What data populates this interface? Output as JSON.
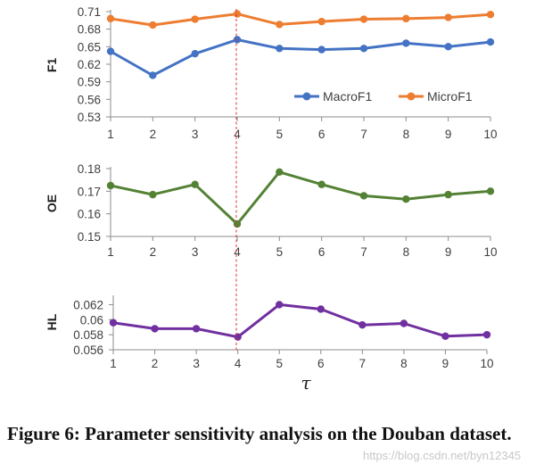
{
  "chart_data": [
    {
      "id": "f1",
      "type": "line",
      "ylabel": "F1",
      "xlabel": "",
      "categories": [
        "1",
        "2",
        "3",
        "4",
        "5",
        "6",
        "7",
        "8",
        "9",
        "10"
      ],
      "ylim": [
        0.53,
        0.71
      ],
      "yticks": [
        "0.71",
        "0.68",
        "0.65",
        "0.62",
        "0.59",
        "0.56",
        "0.53"
      ],
      "legend_position": "lower-right",
      "series": [
        {
          "name": "MacroF1",
          "color": "#4472c4",
          "values": [
            0.642,
            0.601,
            0.638,
            0.662,
            0.647,
            0.645,
            0.647,
            0.656,
            0.65,
            0.658
          ]
        },
        {
          "name": "MicroF1",
          "color": "#ed7d31",
          "values": [
            0.698,
            0.687,
            0.697,
            0.706,
            0.688,
            0.693,
            0.697,
            0.698,
            0.7,
            0.705
          ]
        }
      ]
    },
    {
      "id": "oe",
      "type": "line",
      "ylabel": "OE",
      "xlabel": "",
      "categories": [
        "1",
        "2",
        "3",
        "4",
        "5",
        "6",
        "7",
        "8",
        "9",
        "10"
      ],
      "ylim": [
        0.15,
        0.18
      ],
      "yticks": [
        "0.18",
        "0.17",
        "0.16",
        "0.15"
      ],
      "series": [
        {
          "name": "OE",
          "color": "#548235",
          "values": [
            0.1725,
            0.1685,
            0.173,
            0.1555,
            0.1785,
            0.173,
            0.168,
            0.1665,
            0.1685,
            0.17
          ]
        }
      ]
    },
    {
      "id": "hl",
      "type": "line",
      "ylabel": "HL",
      "xlabel": "τ",
      "categories": [
        "1",
        "2",
        "3",
        "4",
        "5",
        "6",
        "7",
        "8",
        "9",
        "10"
      ],
      "ylim": [
        0.056,
        0.063
      ],
      "yticks": [
        "0.062",
        "0.06",
        "0.058",
        "0.056"
      ],
      "series": [
        {
          "name": "HL",
          "color": "#7030a0",
          "values": [
            0.0596,
            0.0588,
            0.0588,
            0.0577,
            0.062,
            0.0614,
            0.0593,
            0.0595,
            0.0578,
            0.058
          ]
        }
      ]
    }
  ],
  "highlight_tau": 4,
  "caption": "Figure 6: Parameter sensitivity analysis on the Douban dataset.",
  "watermark": "https://blog.csdn.net/byn12345"
}
